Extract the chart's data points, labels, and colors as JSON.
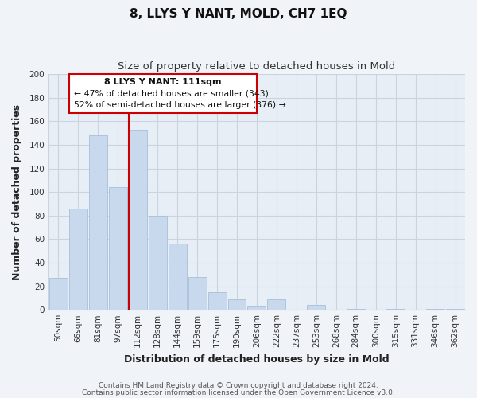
{
  "title": "8, LLYS Y NANT, MOLD, CH7 1EQ",
  "subtitle": "Size of property relative to detached houses in Mold",
  "xlabel": "Distribution of detached houses by size in Mold",
  "ylabel": "Number of detached properties",
  "bar_labels": [
    "50sqm",
    "66sqm",
    "81sqm",
    "97sqm",
    "112sqm",
    "128sqm",
    "144sqm",
    "159sqm",
    "175sqm",
    "190sqm",
    "206sqm",
    "222sqm",
    "237sqm",
    "253sqm",
    "268sqm",
    "284sqm",
    "300sqm",
    "315sqm",
    "331sqm",
    "346sqm",
    "362sqm"
  ],
  "bar_values": [
    27,
    86,
    148,
    104,
    153,
    80,
    56,
    28,
    15,
    9,
    3,
    9,
    0,
    4,
    0,
    1,
    0,
    1,
    0,
    1,
    1
  ],
  "bar_color": "#c8d9ee",
  "bar_edge_color": "#a8c0d8",
  "vline_x_index": 4,
  "vline_color": "#cc0000",
  "ylim": [
    0,
    200
  ],
  "yticks": [
    0,
    20,
    40,
    60,
    80,
    100,
    120,
    140,
    160,
    180,
    200
  ],
  "annotation_title": "8 LLYS Y NANT: 111sqm",
  "annotation_line1": "← 47% of detached houses are smaller (343)",
  "annotation_line2": "52% of semi-detached houses are larger (376) →",
  "footer_line1": "Contains HM Land Registry data © Crown copyright and database right 2024.",
  "footer_line2": "Contains public sector information licensed under the Open Government Licence v3.0.",
  "bg_color": "#f0f4f8",
  "plot_bg_color": "#e8eef5",
  "grid_color": "#c8d4e0",
  "title_fontsize": 11,
  "subtitle_fontsize": 9.5,
  "axis_label_fontsize": 9,
  "tick_fontsize": 7.5,
  "footer_fontsize": 6.5
}
